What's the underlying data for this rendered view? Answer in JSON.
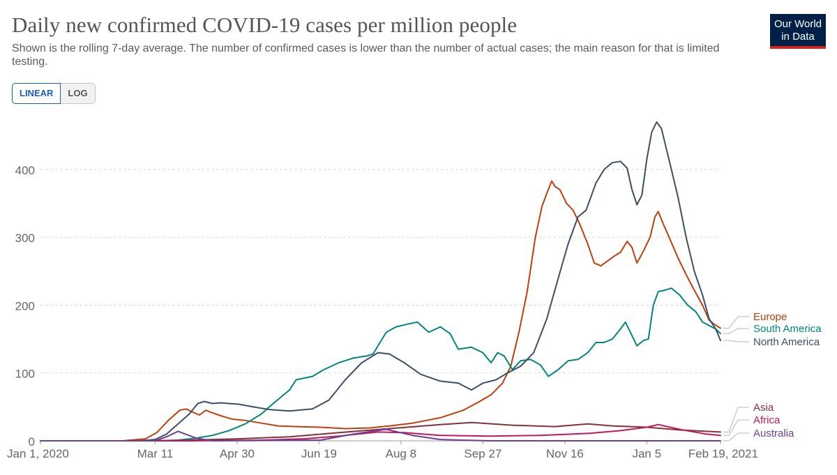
{
  "header": {
    "title": "Daily new confirmed COVID-19 cases per million people",
    "subtitle": "Shown is the rolling 7-day average. The number of confirmed cases is lower than the number of actual cases; the main reason for that is limited testing.",
    "logo_line1": "Our World",
    "logo_line2": "in Data"
  },
  "controls": {
    "linear_label": "LINEAR",
    "log_label": "LOG",
    "selected": "LINEAR"
  },
  "chart_data": {
    "type": "line",
    "title": "Daily new confirmed COVID-19 cases per million people",
    "xlabel": "",
    "ylabel": "",
    "x_axis": "date",
    "xlim": [
      "2020-01-01",
      "2021-02-19"
    ],
    "ylim": [
      0,
      475
    ],
    "yticks": [
      0,
      100,
      200,
      300,
      400
    ],
    "xticks": [
      "Jan 1, 2020",
      "Mar 11",
      "Apr 30",
      "Jun 19",
      "Aug 8",
      "Sep 27",
      "Nov 16",
      "Jan 5",
      "Feb 19, 2021"
    ],
    "xtick_dates": [
      "2020-01-01",
      "2020-03-11",
      "2020-04-30",
      "2020-06-19",
      "2020-08-08",
      "2020-09-27",
      "2020-11-16",
      "2021-01-05",
      "2021-02-19"
    ],
    "grid": "horizontal dashed",
    "legend_placement": "right end labels",
    "series": [
      {
        "name": "Europe",
        "color": "#c13e0d",
        "points": [
          [
            "2020-01-01",
            0
          ],
          [
            "2020-02-20",
            0
          ],
          [
            "2020-03-05",
            3
          ],
          [
            "2020-03-12",
            12
          ],
          [
            "2020-03-19",
            30
          ],
          [
            "2020-03-26",
            45
          ],
          [
            "2020-03-30",
            47
          ],
          [
            "2020-04-03",
            42
          ],
          [
            "2020-04-07",
            38
          ],
          [
            "2020-04-11",
            45
          ],
          [
            "2020-04-14",
            42
          ],
          [
            "2020-04-20",
            37
          ],
          [
            "2020-04-27",
            32
          ],
          [
            "2020-05-05",
            30
          ],
          [
            "2020-05-15",
            26
          ],
          [
            "2020-05-25",
            22
          ],
          [
            "2020-06-05",
            21
          ],
          [
            "2020-06-20",
            20
          ],
          [
            "2020-07-05",
            18
          ],
          [
            "2020-07-20",
            19
          ],
          [
            "2020-08-01",
            22
          ],
          [
            "2020-08-15",
            26
          ],
          [
            "2020-09-01",
            34
          ],
          [
            "2020-09-15",
            45
          ],
          [
            "2020-09-25",
            58
          ],
          [
            "2020-10-02",
            68
          ],
          [
            "2020-10-09",
            85
          ],
          [
            "2020-10-14",
            110
          ],
          [
            "2020-10-19",
            160
          ],
          [
            "2020-10-24",
            220
          ],
          [
            "2020-10-29",
            300
          ],
          [
            "2020-11-02",
            345
          ],
          [
            "2020-11-05",
            365
          ],
          [
            "2020-11-08",
            383
          ],
          [
            "2020-11-10",
            375
          ],
          [
            "2020-11-13",
            370
          ],
          [
            "2020-11-17",
            350
          ],
          [
            "2020-11-21",
            340
          ],
          [
            "2020-11-25",
            320
          ],
          [
            "2020-11-30",
            290
          ],
          [
            "2020-12-04",
            262
          ],
          [
            "2020-12-08",
            258
          ],
          [
            "2020-12-12",
            265
          ],
          [
            "2020-12-16",
            272
          ],
          [
            "2020-12-20",
            278
          ],
          [
            "2020-12-24",
            294
          ],
          [
            "2020-12-27",
            285
          ],
          [
            "2020-12-30",
            262
          ],
          [
            "2021-01-03",
            280
          ],
          [
            "2021-01-07",
            300
          ],
          [
            "2021-01-10",
            330
          ],
          [
            "2021-01-12",
            338
          ],
          [
            "2021-01-15",
            320
          ],
          [
            "2021-01-19",
            298
          ],
          [
            "2021-01-24",
            270
          ],
          [
            "2021-01-29",
            245
          ],
          [
            "2021-02-03",
            222
          ],
          [
            "2021-02-08",
            200
          ],
          [
            "2021-02-12",
            178
          ],
          [
            "2021-02-15",
            172
          ],
          [
            "2021-02-19",
            166
          ]
        ]
      },
      {
        "name": "South America",
        "color": "#00847e",
        "points": [
          [
            "2020-01-01",
            0
          ],
          [
            "2020-03-11",
            0
          ],
          [
            "2020-03-25",
            1
          ],
          [
            "2020-04-05",
            4
          ],
          [
            "2020-04-15",
            8
          ],
          [
            "2020-04-25",
            15
          ],
          [
            "2020-05-05",
            25
          ],
          [
            "2020-05-15",
            40
          ],
          [
            "2020-05-22",
            55
          ],
          [
            "2020-06-01",
            75
          ],
          [
            "2020-06-05",
            90
          ],
          [
            "2020-06-15",
            95
          ],
          [
            "2020-06-22",
            105
          ],
          [
            "2020-07-01",
            115
          ],
          [
            "2020-07-10",
            122
          ],
          [
            "2020-07-18",
            125
          ],
          [
            "2020-07-22",
            128
          ],
          [
            "2020-07-30",
            160
          ],
          [
            "2020-08-05",
            168
          ],
          [
            "2020-08-12",
            172
          ],
          [
            "2020-08-18",
            175
          ],
          [
            "2020-08-25",
            160
          ],
          [
            "2020-09-01",
            168
          ],
          [
            "2020-09-07",
            158
          ],
          [
            "2020-09-12",
            135
          ],
          [
            "2020-09-20",
            138
          ],
          [
            "2020-09-27",
            130
          ],
          [
            "2020-10-02",
            115
          ],
          [
            "2020-10-06",
            130
          ],
          [
            "2020-10-10",
            125
          ],
          [
            "2020-10-15",
            105
          ],
          [
            "2020-10-20",
            118
          ],
          [
            "2020-10-26",
            120
          ],
          [
            "2020-11-01",
            112
          ],
          [
            "2020-11-06",
            95
          ],
          [
            "2020-11-12",
            105
          ],
          [
            "2020-11-18",
            118
          ],
          [
            "2020-11-24",
            120
          ],
          [
            "2020-11-30",
            130
          ],
          [
            "2020-12-05",
            145
          ],
          [
            "2020-12-10",
            145
          ],
          [
            "2020-12-15",
            150
          ],
          [
            "2020-12-20",
            165
          ],
          [
            "2020-12-23",
            175
          ],
          [
            "2020-12-27",
            155
          ],
          [
            "2020-12-30",
            140
          ],
          [
            "2021-01-03",
            148
          ],
          [
            "2021-01-06",
            150
          ],
          [
            "2021-01-09",
            200
          ],
          [
            "2021-01-12",
            220
          ],
          [
            "2021-01-16",
            222
          ],
          [
            "2021-01-20",
            225
          ],
          [
            "2021-01-25",
            215
          ],
          [
            "2021-01-30",
            200
          ],
          [
            "2021-02-04",
            190
          ],
          [
            "2021-02-08",
            175
          ],
          [
            "2021-02-12",
            170
          ],
          [
            "2021-02-16",
            165
          ],
          [
            "2021-02-19",
            158
          ]
        ]
      },
      {
        "name": "North America",
        "color": "#3c4e66",
        "points": [
          [
            "2020-01-01",
            0
          ],
          [
            "2020-03-01",
            0
          ],
          [
            "2020-03-11",
            2
          ],
          [
            "2020-03-18",
            10
          ],
          [
            "2020-03-25",
            25
          ],
          [
            "2020-04-01",
            40
          ],
          [
            "2020-04-06",
            55
          ],
          [
            "2020-04-10",
            58
          ],
          [
            "2020-04-15",
            55
          ],
          [
            "2020-04-20",
            56
          ],
          [
            "2020-04-25",
            55
          ],
          [
            "2020-05-01",
            54
          ],
          [
            "2020-05-10",
            50
          ],
          [
            "2020-05-20",
            46
          ],
          [
            "2020-06-01",
            44
          ],
          [
            "2020-06-15",
            47
          ],
          [
            "2020-06-25",
            60
          ],
          [
            "2020-07-05",
            90
          ],
          [
            "2020-07-15",
            115
          ],
          [
            "2020-07-25",
            130
          ],
          [
            "2020-08-01",
            128
          ],
          [
            "2020-08-10",
            115
          ],
          [
            "2020-08-20",
            98
          ],
          [
            "2020-09-01",
            88
          ],
          [
            "2020-09-12",
            85
          ],
          [
            "2020-09-20",
            75
          ],
          [
            "2020-09-27",
            85
          ],
          [
            "2020-10-05",
            90
          ],
          [
            "2020-10-12",
            100
          ],
          [
            "2020-10-20",
            110
          ],
          [
            "2020-10-28",
            130
          ],
          [
            "2020-11-05",
            180
          ],
          [
            "2020-11-12",
            240
          ],
          [
            "2020-11-18",
            290
          ],
          [
            "2020-11-24",
            330
          ],
          [
            "2020-11-29",
            340
          ],
          [
            "2020-12-05",
            380
          ],
          [
            "2020-12-10",
            400
          ],
          [
            "2020-12-15",
            410
          ],
          [
            "2020-12-20",
            412
          ],
          [
            "2020-12-24",
            402
          ],
          [
            "2020-12-27",
            370
          ],
          [
            "2020-12-30",
            348
          ],
          [
            "2021-01-02",
            362
          ],
          [
            "2021-01-05",
            415
          ],
          [
            "2021-01-08",
            455
          ],
          [
            "2021-01-11",
            470
          ],
          [
            "2021-01-14",
            460
          ],
          [
            "2021-01-19",
            410
          ],
          [
            "2021-01-24",
            360
          ],
          [
            "2021-01-29",
            300
          ],
          [
            "2021-02-03",
            250
          ],
          [
            "2021-02-08",
            215
          ],
          [
            "2021-02-12",
            180
          ],
          [
            "2021-02-16",
            165
          ],
          [
            "2021-02-19",
            148
          ]
        ]
      },
      {
        "name": "Asia",
        "color": "#883039",
        "points": [
          [
            "2020-01-01",
            0
          ],
          [
            "2020-03-11",
            0
          ],
          [
            "2020-04-01",
            1
          ],
          [
            "2020-05-01",
            3
          ],
          [
            "2020-06-01",
            6
          ],
          [
            "2020-07-01",
            12
          ],
          [
            "2020-08-01",
            18
          ],
          [
            "2020-09-01",
            24
          ],
          [
            "2020-09-20",
            27
          ],
          [
            "2020-10-15",
            23
          ],
          [
            "2020-11-10",
            21
          ],
          [
            "2020-11-30",
            25
          ],
          [
            "2020-12-15",
            22
          ],
          [
            "2021-01-05",
            20
          ],
          [
            "2021-01-25",
            16
          ],
          [
            "2021-02-19",
            13
          ]
        ]
      },
      {
        "name": "Africa",
        "color": "#c2185b",
        "points": [
          [
            "2020-01-01",
            0
          ],
          [
            "2020-04-01",
            0
          ],
          [
            "2020-05-15",
            1
          ],
          [
            "2020-06-10",
            3
          ],
          [
            "2020-07-01",
            7
          ],
          [
            "2020-07-25",
            13
          ],
          [
            "2020-08-10",
            12
          ],
          [
            "2020-09-01",
            8
          ],
          [
            "2020-10-01",
            7
          ],
          [
            "2020-11-01",
            8
          ],
          [
            "2020-12-01",
            11
          ],
          [
            "2020-12-20",
            15
          ],
          [
            "2021-01-05",
            20
          ],
          [
            "2021-01-12",
            24
          ],
          [
            "2021-01-25",
            17
          ],
          [
            "2021-02-10",
            10
          ],
          [
            "2021-02-19",
            8
          ]
        ]
      },
      {
        "name": "Australia",
        "color": "#6d3e91",
        "points": [
          [
            "2020-01-01",
            0
          ],
          [
            "2020-03-11",
            0
          ],
          [
            "2020-03-18",
            6
          ],
          [
            "2020-03-25",
            14
          ],
          [
            "2020-04-05",
            4
          ],
          [
            "2020-04-15",
            0
          ],
          [
            "2020-06-20",
            1
          ],
          [
            "2020-07-10",
            10
          ],
          [
            "2020-07-30",
            17
          ],
          [
            "2020-08-15",
            8
          ],
          [
            "2020-09-01",
            2
          ],
          [
            "2020-10-01",
            0
          ],
          [
            "2021-02-19",
            0
          ]
        ]
      }
    ]
  }
}
